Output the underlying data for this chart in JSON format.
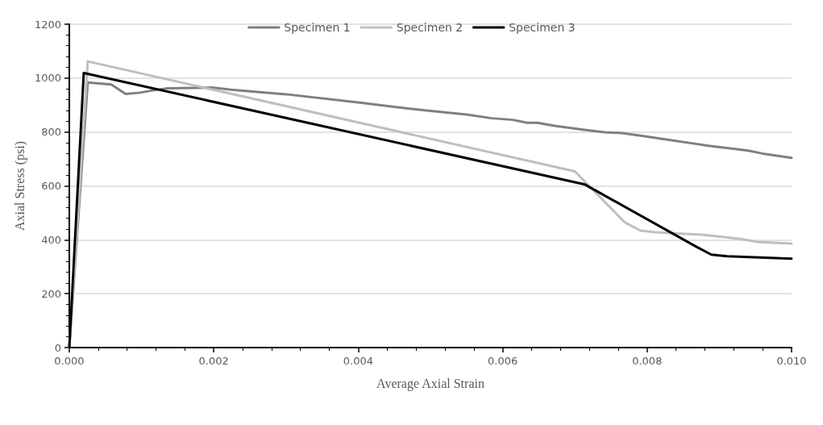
{
  "chart_data": {
    "type": "line",
    "xlabel": "Average Axial Strain",
    "ylabel": "Axial Stress (psi)",
    "xlim": [
      0,
      0.01
    ],
    "ylim": [
      0,
      1200
    ],
    "xticks": [
      {
        "value": 0,
        "label": "0.000"
      },
      {
        "value": 0.002,
        "label": "0.002"
      },
      {
        "value": 0.004,
        "label": "0.004"
      },
      {
        "value": 0.006,
        "label": "0.006"
      },
      {
        "value": 0.008,
        "label": "0.008"
      },
      {
        "value": 0.01,
        "label": "0.010"
      }
    ],
    "yticks": [
      0,
      200,
      400,
      600,
      800,
      1000,
      1200
    ],
    "grid": "y",
    "legend": "top",
    "marker": "none",
    "line_style": "solid",
    "series": [
      {
        "name": "Specimen 1",
        "color": "#7f7f7f",
        "x": [
          0,
          0.000255,
          0.00058,
          0.00078,
          0.00098,
          0.00117,
          0.00136,
          0.00197,
          0.00224,
          0.003,
          0.004,
          0.0045,
          0.005,
          0.0055,
          0.00585,
          0.00614,
          0.00634,
          0.00648,
          0.00672,
          0.00711,
          0.00741,
          0.00765,
          0.00795,
          0.0084,
          0.0086,
          0.00885,
          0.0094,
          0.0096,
          0.01
        ],
        "values": [
          0,
          984,
          976,
          941,
          946,
          955,
          962,
          965,
          957,
          940,
          910,
          893,
          878,
          865,
          851,
          845,
          834,
          834,
          823,
          809,
          799,
          796,
          785,
          767,
          759,
          749,
          731,
          720,
          704
        ]
      },
      {
        "name": "Specimen 2",
        "color": "#bfbfbf",
        "x": [
          0,
          0.0001,
          0.000255,
          0.007,
          0.00769,
          0.00791,
          0.00811,
          0.00879,
          0.00929,
          0.00953,
          0.01
        ],
        "values": [
          0,
          406,
          1062,
          654,
          465,
          434,
          428,
          418,
          403,
          392,
          386
        ]
      },
      {
        "name": "Specimen 3",
        "color": "#000000",
        "x": [
          0,
          0.0002,
          0.00714,
          0.00869,
          0.00889,
          0.00911,
          0.01
        ],
        "values": [
          0,
          1019,
          605,
          373,
          345,
          339,
          330
        ]
      }
    ]
  }
}
